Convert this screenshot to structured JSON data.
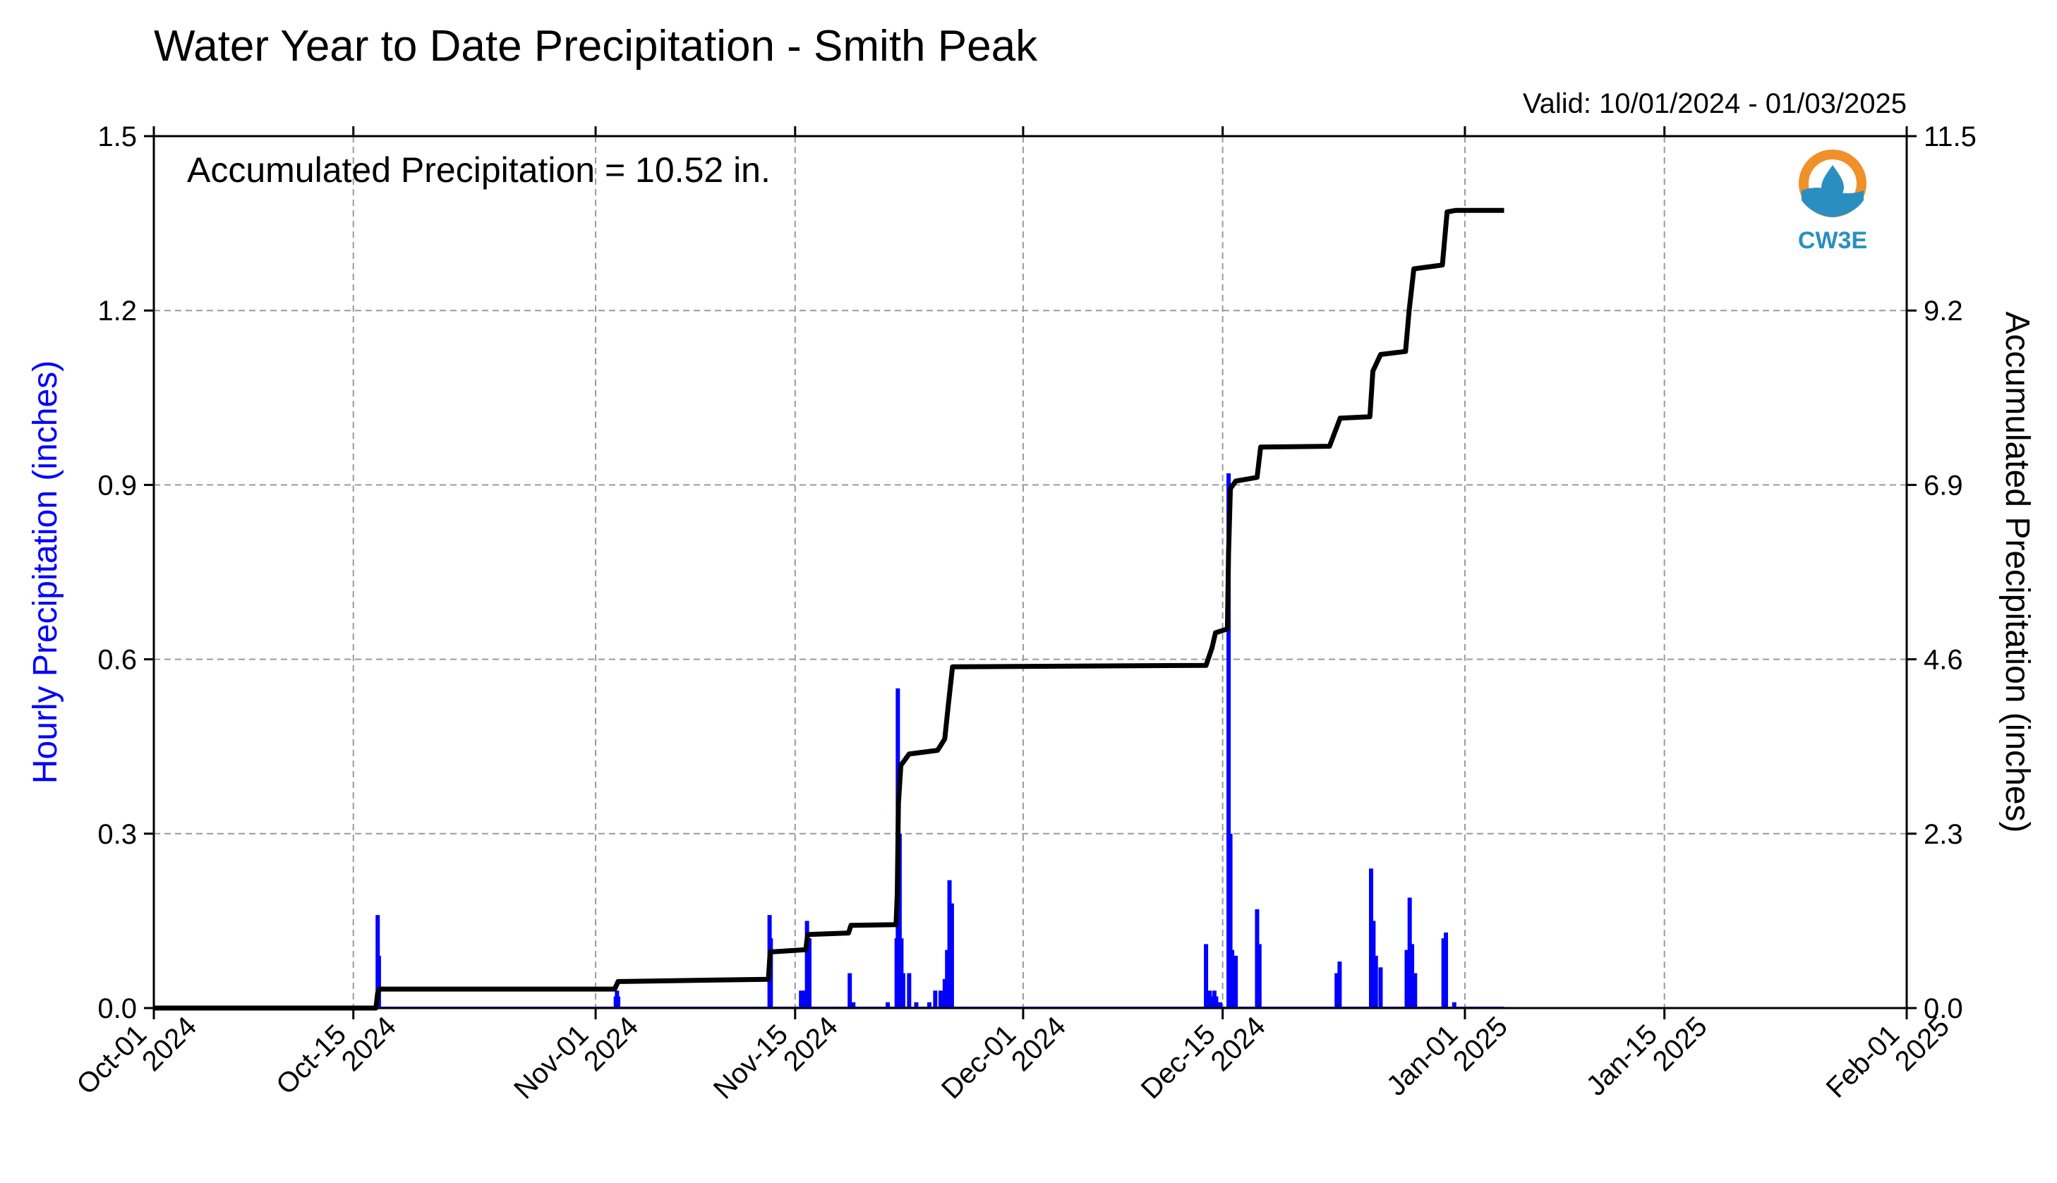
{
  "title": "Water Year to Date Precipitation - Smith Peak",
  "valid_text": "Valid: 10/01/2024 - 01/03/2025",
  "annotation": "Accumulated Precipitation = 10.52 in.",
  "logo": {
    "text": "CW3E",
    "color": "#2a8fc0",
    "ring_color": "#f0902a"
  },
  "chart_data": {
    "type": "bar+line",
    "title": "Water Year to Date Precipitation - Smith Peak",
    "ylabel_left": "Hourly Precipitation (inches)",
    "ylabel_right": "Accumulated Precipitation (inches)",
    "ylim_left": [
      0,
      1.5
    ],
    "ylim_right": [
      0,
      11.5
    ],
    "yticks_left": [
      "0.0",
      "0.3",
      "0.6",
      "0.9",
      "1.2",
      "1.5"
    ],
    "yticks_right": [
      "0.0",
      "2.3",
      "4.6",
      "6.9",
      "9.2",
      "11.5"
    ],
    "xlim": [
      "2024-10-01",
      "2025-02-01"
    ],
    "xticks": [
      {
        "date": "2024-10-01",
        "line1": "Oct-01",
        "line2": "2024"
      },
      {
        "date": "2024-10-15",
        "line1": "Oct-15",
        "line2": "2024"
      },
      {
        "date": "2024-11-01",
        "line1": "Nov-01",
        "line2": "2024"
      },
      {
        "date": "2024-11-15",
        "line1": "Nov-15",
        "line2": "2024"
      },
      {
        "date": "2024-12-01",
        "line1": "Dec-01",
        "line2": "2024"
      },
      {
        "date": "2024-12-15",
        "line1": "Dec-15",
        "line2": "2024"
      },
      {
        "date": "2025-01-01",
        "line1": "Jan-01",
        "line2": "2025"
      },
      {
        "date": "2025-01-15",
        "line1": "Jan-15",
        "line2": "2025"
      },
      {
        "date": "2025-02-01",
        "line1": "Feb-01",
        "line2": "2025"
      }
    ],
    "grid": true,
    "series": [
      {
        "name": "Hourly Precipitation",
        "type": "bar",
        "color": "#0000ff",
        "points": [
          [
            "2024-10-16T17:00",
            0.16
          ],
          [
            "2024-10-16T19:00",
            0.09
          ],
          [
            "2024-11-02T10:00",
            0.02
          ],
          [
            "2024-11-02T12:00",
            0.03
          ],
          [
            "2024-11-02T14:00",
            0.02
          ],
          [
            "2024-11-13T05:00",
            0.16
          ],
          [
            "2024-11-13T07:00",
            0.12
          ],
          [
            "2024-11-15T10:00",
            0.03
          ],
          [
            "2024-11-15T15:00",
            0.03
          ],
          [
            "2024-11-15T20:00",
            0.15
          ],
          [
            "2024-11-16T00:00",
            0.12
          ],
          [
            "2024-11-18T20:00",
            0.06
          ],
          [
            "2024-11-19T02:00",
            0.01
          ],
          [
            "2024-11-21T12:00",
            0.01
          ],
          [
            "2024-11-22T03:00",
            0.12
          ],
          [
            "2024-11-22T05:00",
            0.55
          ],
          [
            "2024-11-22T08:00",
            0.3
          ],
          [
            "2024-11-22T11:00",
            0.12
          ],
          [
            "2024-11-22T14:00",
            0.06
          ],
          [
            "2024-11-23T00:00",
            0.06
          ],
          [
            "2024-11-23T12:00",
            0.01
          ],
          [
            "2024-11-24T10:00",
            0.01
          ],
          [
            "2024-11-24T20:00",
            0.03
          ],
          [
            "2024-11-25T05:00",
            0.03
          ],
          [
            "2024-11-25T12:00",
            0.05
          ],
          [
            "2024-11-25T16:00",
            0.1
          ],
          [
            "2024-11-25T20:00",
            0.22
          ],
          [
            "2024-11-26T00:00",
            0.18
          ],
          [
            "2024-12-13T20:00",
            0.11
          ],
          [
            "2024-12-14T02:00",
            0.03
          ],
          [
            "2024-12-14T06:00",
            0.02
          ],
          [
            "2024-12-14T10:00",
            0.03
          ],
          [
            "2024-12-14T13:00",
            0.02
          ],
          [
            "2024-12-14T20:00",
            0.01
          ],
          [
            "2024-12-15T10:00",
            0.92
          ],
          [
            "2024-12-15T13:00",
            0.3
          ],
          [
            "2024-12-15T16:00",
            0.1
          ],
          [
            "2024-12-15T22:00",
            0.09
          ],
          [
            "2024-12-17T10:00",
            0.17
          ],
          [
            "2024-12-17T14:00",
            0.11
          ],
          [
            "2024-12-23T00:00",
            0.06
          ],
          [
            "2024-12-23T05:00",
            0.08
          ],
          [
            "2024-12-25T10:00",
            0.24
          ],
          [
            "2024-12-25T14:00",
            0.15
          ],
          [
            "2024-12-25T18:00",
            0.09
          ],
          [
            "2024-12-26T02:00",
            0.07
          ],
          [
            "2024-12-27T22:00",
            0.1
          ],
          [
            "2024-12-28T03:00",
            0.19
          ],
          [
            "2024-12-28T07:00",
            0.11
          ],
          [
            "2024-12-28T12:00",
            0.06
          ],
          [
            "2024-12-30T12:00",
            0.12
          ],
          [
            "2024-12-30T16:00",
            0.13
          ],
          [
            "2024-12-31T06:00",
            0.01
          ]
        ]
      },
      {
        "name": "Accumulated Precipitation",
        "type": "line",
        "color": "#000000",
        "points": [
          [
            "2024-10-01T00:00",
            0.0
          ],
          [
            "2024-10-16T14:00",
            0.0
          ],
          [
            "2024-10-16T17:00",
            0.2
          ],
          [
            "2024-10-16T20:00",
            0.25
          ],
          [
            "2024-11-02T08:00",
            0.25
          ],
          [
            "2024-11-02T14:00",
            0.35
          ],
          [
            "2024-11-13T03:00",
            0.38
          ],
          [
            "2024-11-13T06:00",
            0.74
          ],
          [
            "2024-11-15T18:00",
            0.77
          ],
          [
            "2024-11-15T21:00",
            0.97
          ],
          [
            "2024-11-18T18:00",
            0.99
          ],
          [
            "2024-11-18T22:00",
            1.09
          ],
          [
            "2024-11-22T02:00",
            1.1
          ],
          [
            "2024-11-22T04:00",
            1.5
          ],
          [
            "2024-11-22T06:00",
            2.7
          ],
          [
            "2024-11-22T10:00",
            3.2
          ],
          [
            "2024-11-23T00:00",
            3.35
          ],
          [
            "2024-11-25T00:00",
            3.4
          ],
          [
            "2024-11-25T12:00",
            3.55
          ],
          [
            "2024-11-25T18:00",
            4.0
          ],
          [
            "2024-11-26T01:00",
            4.5
          ],
          [
            "2024-12-13T20:00",
            4.52
          ],
          [
            "2024-12-14T06:00",
            4.75
          ],
          [
            "2024-12-14T12:00",
            4.95
          ],
          [
            "2024-12-15T08:00",
            5.0
          ],
          [
            "2024-12-15T10:00",
            6.0
          ],
          [
            "2024-12-15T13:00",
            6.85
          ],
          [
            "2024-12-15T22:00",
            6.95
          ],
          [
            "2024-12-17T10:00",
            7.0
          ],
          [
            "2024-12-17T16:00",
            7.4
          ],
          [
            "2024-12-22T12:00",
            7.41
          ],
          [
            "2024-12-23T06:00",
            7.78
          ],
          [
            "2024-12-25T08:00",
            7.8
          ],
          [
            "2024-12-25T13:00",
            8.4
          ],
          [
            "2024-12-26T02:00",
            8.62
          ],
          [
            "2024-12-27T20:00",
            8.66
          ],
          [
            "2024-12-28T02:00",
            9.2
          ],
          [
            "2024-12-28T10:00",
            9.75
          ],
          [
            "2024-12-30T10:00",
            9.8
          ],
          [
            "2024-12-30T18:00",
            10.5
          ],
          [
            "2024-12-31T08:00",
            10.52
          ],
          [
            "2025-01-03T18:00",
            10.52
          ]
        ]
      }
    ]
  }
}
